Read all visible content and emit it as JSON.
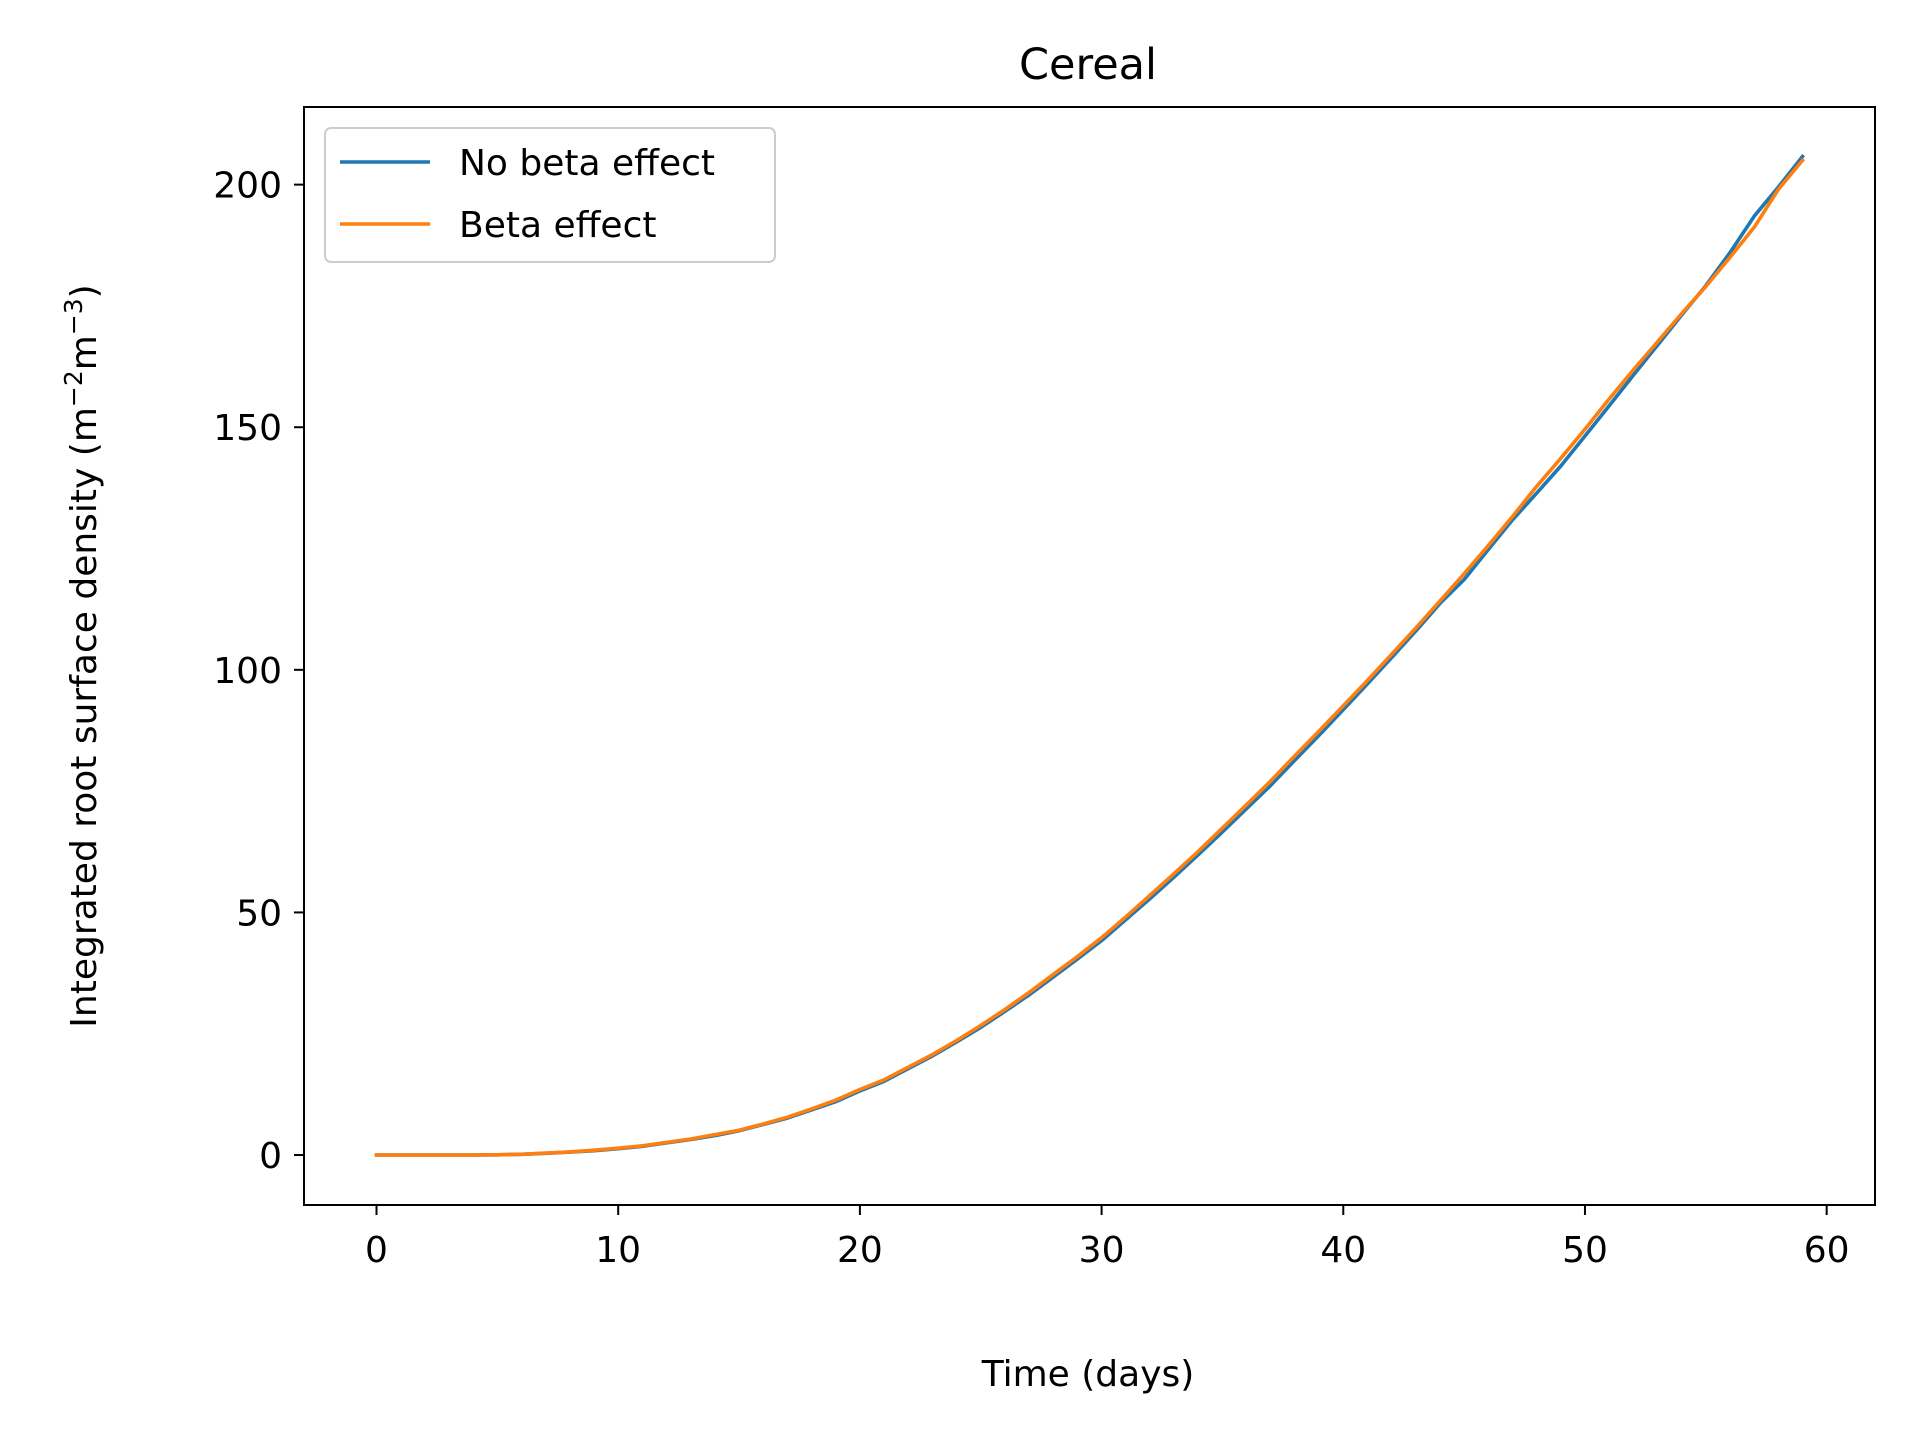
{
  "chart_data": {
    "type": "line",
    "title": "Cereal",
    "xlabel": "Time (days)",
    "ylabel": {
      "prefix": "Integrated root surface density (m",
      "sup1": "−2",
      "mid": "m",
      "sup2": "−3",
      "suffix": ")"
    },
    "xlim": [
      -3,
      62
    ],
    "ylim": [
      -10.3,
      216
    ],
    "xticks": [
      0,
      10,
      20,
      30,
      40,
      50,
      60
    ],
    "yticks": [
      0,
      50,
      100,
      150,
      200
    ],
    "grid": false,
    "legend": "top-left",
    "x": [
      0,
      1,
      2,
      3,
      4,
      5,
      6,
      7,
      8,
      9,
      10,
      11,
      12,
      13,
      14,
      15,
      16,
      17,
      18,
      19,
      20,
      21,
      22,
      23,
      24,
      25,
      26,
      27,
      28,
      29,
      30,
      31,
      32,
      33,
      34,
      35,
      36,
      37,
      38,
      39,
      40,
      41,
      42,
      43,
      44,
      45,
      46,
      47,
      48,
      49,
      50,
      51,
      52,
      53,
      54,
      55,
      56,
      57,
      58,
      59
    ],
    "series": [
      {
        "name": "No beta effect",
        "color": "#1f77b4",
        "values": [
          0,
          0,
          0,
          0,
          0,
          0.05,
          0.15,
          0.35,
          0.6,
          0.9,
          1.3,
          1.8,
          2.5,
          3.2,
          4.0,
          5.0,
          6.3,
          7.6,
          9.3,
          11.0,
          13.2,
          15.2,
          17.8,
          20.4,
          23.3,
          26.3,
          29.6,
          33.0,
          36.7,
          40.4,
          44.2,
          48.5,
          52.8,
          57.3,
          61.9,
          66.6,
          71.4,
          76.2,
          81.4,
          86.5,
          91.8,
          97.1,
          102.5,
          108.0,
          113.7,
          118.6,
          124.8,
          130.9,
          136.4,
          142.0,
          148.2,
          154.4,
          160.7,
          166.9,
          173.1,
          179.2,
          186.0,
          193.5,
          199.5,
          205.8
        ]
      },
      {
        "name": "Beta effect",
        "color": "#ff7f0e",
        "values": [
          0,
          0,
          0,
          0,
          0,
          0.05,
          0.15,
          0.4,
          0.65,
          1.0,
          1.4,
          1.9,
          2.6,
          3.3,
          4.2,
          5.1,
          6.4,
          7.8,
          9.5,
          11.3,
          13.5,
          15.5,
          18.1,
          20.7,
          23.6,
          26.7,
          30.0,
          33.5,
          37.2,
          40.9,
          44.8,
          49.1,
          53.5,
          58.0,
          62.6,
          67.4,
          72.2,
          77.1,
          82.3,
          87.4,
          92.6,
          97.8,
          103.2,
          108.6,
          114.2,
          119.8,
          125.6,
          131.6,
          137.8,
          143.6,
          149.6,
          155.8,
          161.8,
          167.6,
          173.4,
          179.0,
          185.0,
          191.2,
          199.0,
          205.0
        ]
      }
    ]
  }
}
